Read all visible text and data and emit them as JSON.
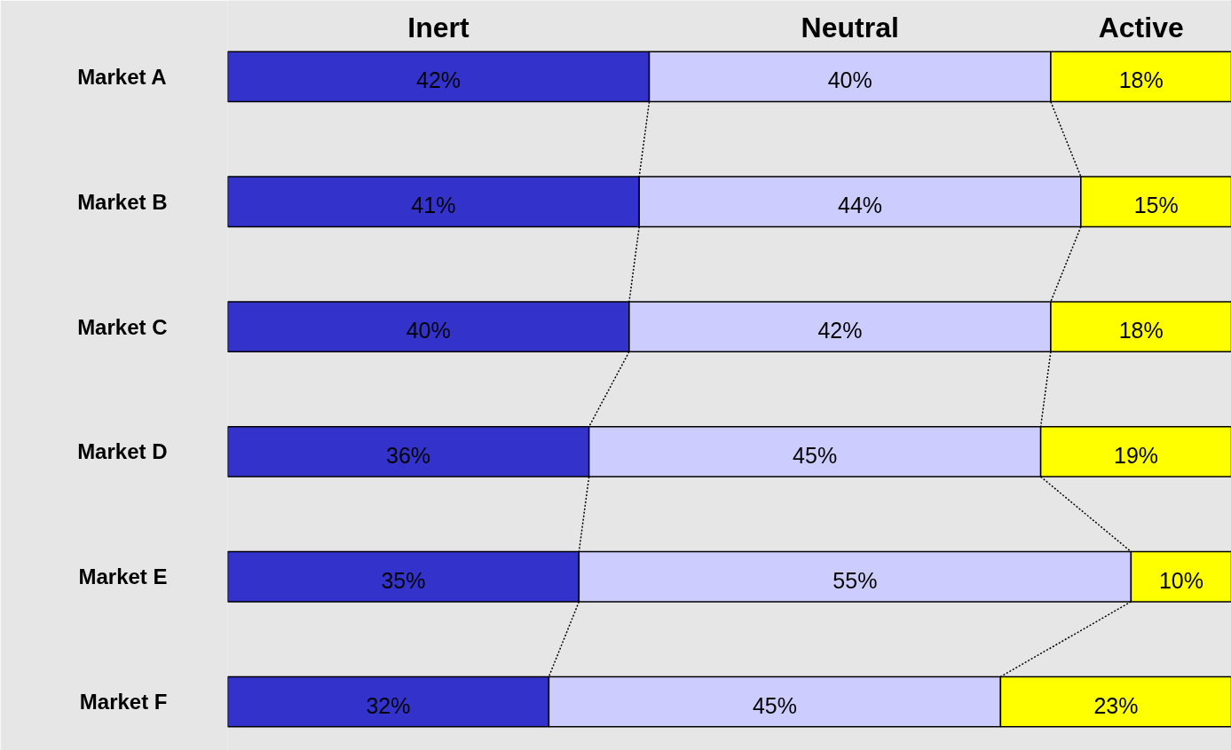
{
  "chart_data": {
    "type": "bar",
    "orientation": "horizontal",
    "stacked": true,
    "categories": [
      "Market A",
      "Market B",
      "Market C",
      "Market D",
      "Market E",
      "Market F"
    ],
    "series": [
      {
        "name": "Inert",
        "color": "#3333cc",
        "values": [
          42,
          41,
          40,
          36,
          35,
          32
        ],
        "value_labels": [
          "42%",
          "41%",
          "40%",
          "36%",
          "35%",
          "32%"
        ]
      },
      {
        "name": "Neutral",
        "color": "#ccccff",
        "values": [
          40,
          44,
          42,
          45,
          55,
          45
        ],
        "value_labels": [
          "40%",
          "44%",
          "42%",
          "45%",
          "55%",
          "45%"
        ]
      },
      {
        "name": "Active",
        "color": "#ffff00",
        "values": [
          18,
          15,
          18,
          19,
          10,
          23
        ],
        "value_labels": [
          "18%",
          "15%",
          "18%",
          "19%",
          "10%",
          "23%"
        ]
      }
    ],
    "tick_labels": "y",
    "legend": false
  }
}
